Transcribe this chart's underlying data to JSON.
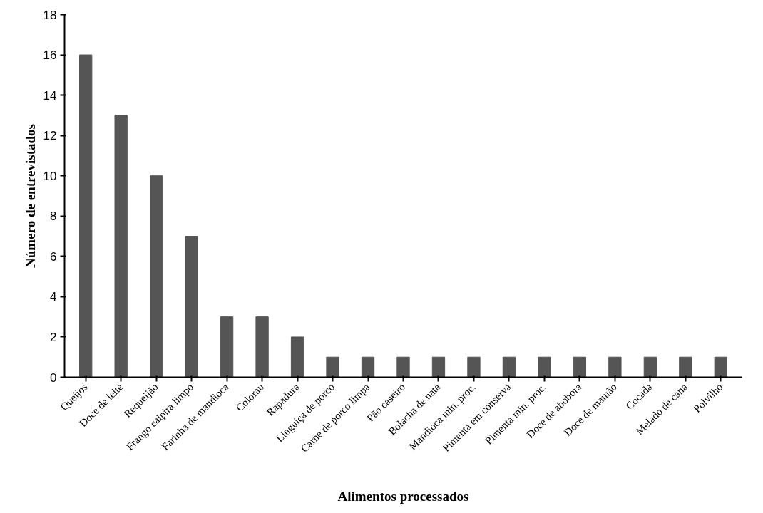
{
  "chart_data": {
    "type": "bar",
    "xlabel": "Alimentos processados",
    "ylabel": "Número de entrevistados",
    "categories": [
      "Queijos",
      "Doce de leite",
      "Requeijão",
      "Frango caipira limpo",
      "Farinha de mandioca",
      "Colorau",
      "Rapadura",
      "Linguiça de porco",
      "Carne de porco limpa",
      "Pão caseiro",
      "Bolacha de nata",
      "Mandioca min. proc.",
      "Pimenta em conserva",
      "Pimenta min. proc.",
      "Doce de abobora",
      "Doce de mamão",
      "Cocada",
      "Melado de cana",
      "Polvilho"
    ],
    "values": [
      16,
      13,
      10,
      7,
      3,
      3,
      2,
      1,
      1,
      1,
      1,
      1,
      1,
      1,
      1,
      1,
      1,
      1,
      1
    ],
    "color": "#555555",
    "ylim": [
      0,
      18
    ],
    "yticks": [
      0,
      2,
      4,
      6,
      8,
      10,
      12,
      14,
      16,
      18
    ],
    "grid": false
  }
}
